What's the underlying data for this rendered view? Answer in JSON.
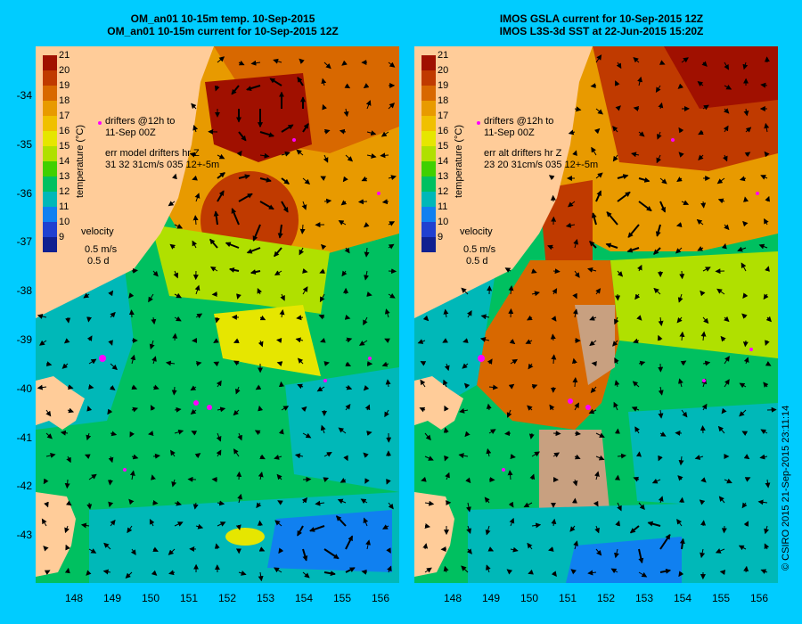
{
  "left_panel": {
    "title_line1": "OM_an01 10-15m temp. 10-Sep-2015",
    "title_line2": "OM_an01 10-15m current for 10-Sep-2015 12Z",
    "drifter_line1": "drifters @12h to",
    "drifter_line2": "11-Sep 00Z",
    "err_line1": "err model drifters hr Z",
    "err_line2": "31 32 31cm/s 035 12+-5m",
    "velocity_label": "velocity",
    "velocity_scale1": "0.5 m/s",
    "velocity_scale2": "0.5 d"
  },
  "right_panel": {
    "title_line1": "IMOS GSLA current for 10-Sep-2015 12Z",
    "title_line2": "IMOS L3S-3d SST at 22-Jun-2015 15:20Z",
    "drifter_line1": "drifters @12h to",
    "drifter_line2": "11-Sep 00Z",
    "err_line1": "err alt drifters hr Z",
    "err_line2": "23 20 31cm/s 035 12+-5m",
    "velocity_label": "velocity",
    "velocity_scale1": "0.5 m/s",
    "velocity_scale2": "0.5 d"
  },
  "colorbar": {
    "title": "temperature (°C)",
    "labels": [
      "21",
      "20",
      "19",
      "18",
      "17",
      "16",
      "15",
      "14",
      "13",
      "12",
      "11",
      "10",
      "9"
    ],
    "colors": [
      "#a01000",
      "#c03a00",
      "#d86800",
      "#e89a00",
      "#f0c000",
      "#e6e600",
      "#b0e000",
      "#40d000",
      "#00c060",
      "#00b8b8",
      "#1080f0",
      "#2040d0",
      "#102090"
    ]
  },
  "axes": {
    "lat_labels": [
      "-34",
      "-35",
      "-36",
      "-37",
      "-38",
      "-39",
      "-40",
      "-41",
      "-42",
      "-43"
    ],
    "lon_labels": [
      "148",
      "149",
      "150",
      "151",
      "152",
      "153",
      "154",
      "155",
      "156"
    ]
  },
  "credit": "© CSIRO 2015   21-Sep-2015 23:11:14",
  "colors": {
    "background": "#00ccff",
    "land": "#ffcc99",
    "drifter": "#ff00ff"
  }
}
